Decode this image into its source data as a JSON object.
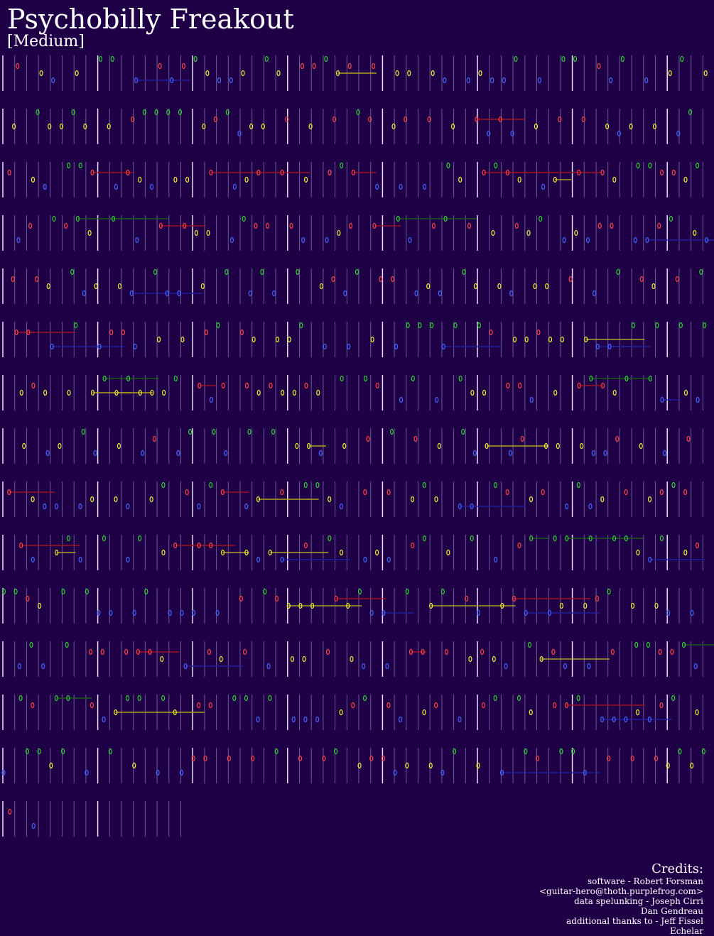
{
  "header": {
    "title": "Psychobilly Freakout",
    "difficulty": "[Medium]"
  },
  "credits": {
    "heading": "Credits:",
    "lines": [
      "software - Robert Forsman",
      "<guitar-hero@thoth.purplefrog.com>",
      "data spelunking - Joseph Cirri",
      "Dan Gendreau",
      "additional thanks to - Jeff Fissel",
      "Echelar"
    ]
  }
}
